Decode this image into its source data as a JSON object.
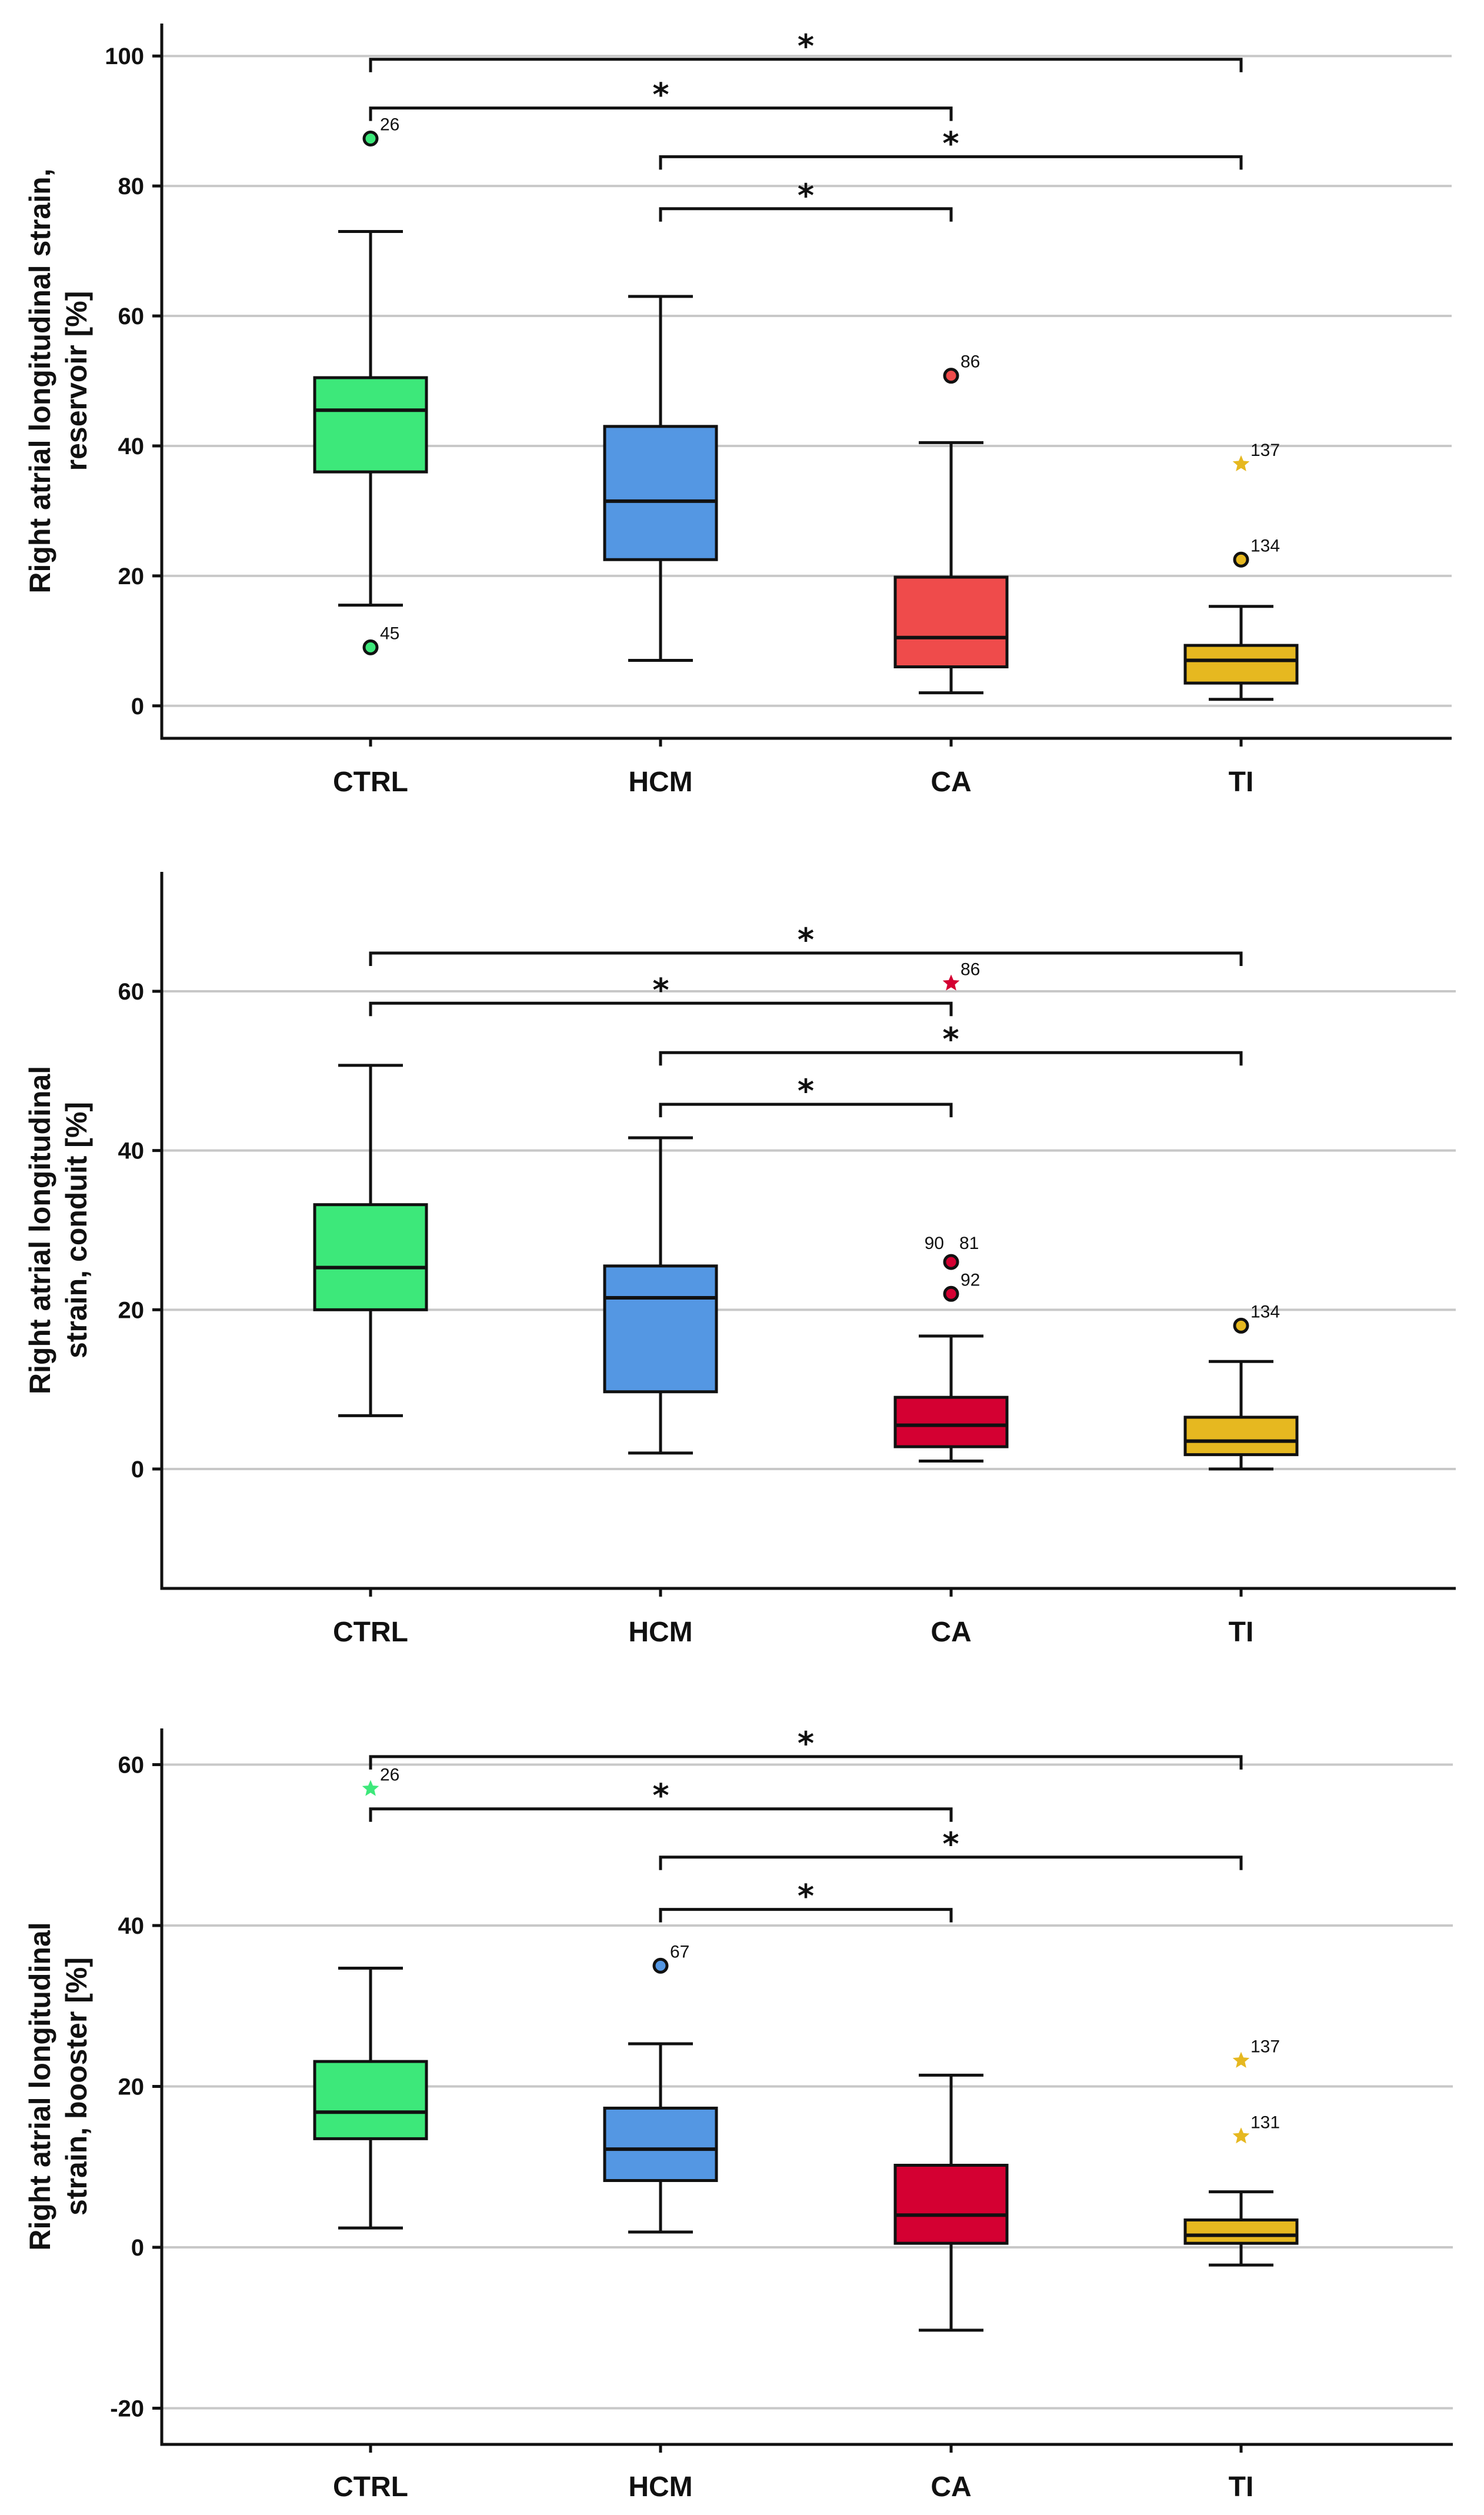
{
  "chart_data": [
    {
      "type": "box",
      "title": "",
      "xlabel": "",
      "ylabel_lines": [
        "Right atrial longitudinal strain,",
        "reservoir [%]"
      ],
      "categories": [
        "CTRL",
        "HCM",
        "CA",
        "TI"
      ],
      "colors": [
        "#3de87a",
        "#5497e3",
        "#ef4b4b",
        "#e6b820"
      ],
      "ylim": [
        -5,
        105
      ],
      "yticks": [
        0,
        20,
        40,
        60,
        80,
        100
      ],
      "tick_labels": [
        "0",
        "20",
        "40",
        "60",
        "80",
        "100"
      ],
      "boxes": [
        {
          "category": "CTRL",
          "min": 15.5,
          "q1": 36,
          "median": 45.5,
          "q3": 50.5,
          "max": 73
        },
        {
          "category": "HCM",
          "min": 7,
          "q1": 22.5,
          "median": 31.5,
          "q3": 43,
          "max": 63
        },
        {
          "category": "CA",
          "min": 2,
          "q1": 6,
          "median": 10.5,
          "q3": 19.8,
          "max": 40.5
        },
        {
          "category": "TI",
          "min": 1,
          "q1": 3.5,
          "median": 7,
          "q3": 9.3,
          "max": 15.3
        }
      ],
      "outliers": [
        {
          "category": "CTRL",
          "value": 87.3,
          "label": "26",
          "marker": "circle"
        },
        {
          "category": "CTRL",
          "value": 9,
          "label": "45",
          "marker": "circle"
        },
        {
          "category": "CA",
          "value": 50.8,
          "label": "86",
          "marker": "circle"
        },
        {
          "category": "TI",
          "value": 37.2,
          "label": "137",
          "marker": "star"
        },
        {
          "category": "TI",
          "value": 22.5,
          "label": "134",
          "marker": "circle"
        }
      ],
      "significance": [
        {
          "from": "CTRL",
          "to": "TI",
          "value": 99.5,
          "label": "*"
        },
        {
          "from": "CTRL",
          "to": "CA",
          "value": 92,
          "label": "*"
        },
        {
          "from": "HCM",
          "to": "TI",
          "value": 84.5,
          "label": "*"
        },
        {
          "from": "HCM",
          "to": "CA",
          "value": 76.5,
          "label": "*"
        }
      ]
    },
    {
      "type": "box",
      "title": "",
      "xlabel": "",
      "ylabel_lines": [
        "Right atrial longitudinal",
        "strain, conduit [%]"
      ],
      "categories": [
        "CTRL",
        "HCM",
        "CA",
        "TI"
      ],
      "colors": [
        "#3de87a",
        "#5497e3",
        "#d40032",
        "#e6b820"
      ],
      "ylim": [
        -15,
        75
      ],
      "yticks": [
        0,
        20,
        40,
        60
      ],
      "tick_labels": [
        "0",
        "20",
        "40",
        "60"
      ],
      "boxes": [
        {
          "category": "CTRL",
          "min": 6.7,
          "q1": 20,
          "median": 25.3,
          "q3": 33.2,
          "max": 50.7
        },
        {
          "category": "HCM",
          "min": 2,
          "q1": 9.7,
          "median": 21.5,
          "q3": 25.5,
          "max": 41.6
        },
        {
          "category": "CA",
          "min": 1,
          "q1": 2.8,
          "median": 5.5,
          "q3": 9,
          "max": 16.7
        },
        {
          "category": "TI",
          "min": 0,
          "q1": 1.8,
          "median": 3.5,
          "q3": 6.5,
          "max": 13.5
        }
      ],
      "outliers": [
        {
          "category": "CA",
          "value": 61,
          "label": "86",
          "marker": "star"
        },
        {
          "category": "CA",
          "value": 26,
          "label": "90 81",
          "marker": "circle"
        },
        {
          "category": "CA",
          "value": 22,
          "label": "92",
          "marker": "circle"
        },
        {
          "category": "TI",
          "value": 18,
          "label": "134",
          "marker": "circle"
        }
      ],
      "significance": [
        {
          "from": "CTRL",
          "to": "TI",
          "value": 64.8,
          "label": "*"
        },
        {
          "from": "CTRL",
          "to": "CA",
          "value": 58.5,
          "label": "*"
        },
        {
          "from": "HCM",
          "to": "TI",
          "value": 52.3,
          "label": "*"
        },
        {
          "from": "HCM",
          "to": "CA",
          "value": 45.8,
          "label": "*"
        }
      ]
    },
    {
      "type": "box",
      "title": "",
      "xlabel": "",
      "ylabel_lines": [
        "Right atrial longitudinal",
        "strain, booster [%]"
      ],
      "categories": [
        "CTRL",
        "HCM",
        "CA",
        "TI"
      ],
      "colors": [
        "#3de87a",
        "#5497e3",
        "#d40032",
        "#e6b820"
      ],
      "ylim": [
        -24.5,
        64.5
      ],
      "yticks": [
        -20,
        0,
        20,
        40,
        60
      ],
      "tick_labels": [
        "-20",
        "0",
        "20",
        "40",
        "60"
      ],
      "boxes": [
        {
          "category": "CTRL",
          "min": 2.4,
          "q1": 13.5,
          "median": 16.8,
          "q3": 23.1,
          "max": 34.7
        },
        {
          "category": "HCM",
          "min": 1.9,
          "q1": 8.3,
          "median": 12.2,
          "q3": 17.3,
          "max": 25.3
        },
        {
          "category": "CA",
          "min": -10.3,
          "q1": 0.5,
          "median": 4,
          "q3": 10.2,
          "max": 21.4
        },
        {
          "category": "TI",
          "min": -2.2,
          "q1": 0.5,
          "median": 1.5,
          "q3": 3.4,
          "max": 6.9
        }
      ],
      "outliers": [
        {
          "category": "CTRL",
          "value": 57,
          "label": "26",
          "marker": "star"
        },
        {
          "category": "HCM",
          "value": 35,
          "label": "67",
          "marker": "circle"
        },
        {
          "category": "TI",
          "value": 23.2,
          "label": "137",
          "marker": "star"
        },
        {
          "category": "TI",
          "value": 13.8,
          "label": "131",
          "marker": "star"
        }
      ],
      "significance": [
        {
          "from": "CTRL",
          "to": "TI",
          "value": 61,
          "label": "*"
        },
        {
          "from": "CTRL",
          "to": "CA",
          "value": 54.5,
          "label": "*"
        },
        {
          "from": "HCM",
          "to": "TI",
          "value": 48.5,
          "label": "*"
        },
        {
          "from": "HCM",
          "to": "CA",
          "value": 42,
          "label": "*"
        }
      ]
    }
  ]
}
